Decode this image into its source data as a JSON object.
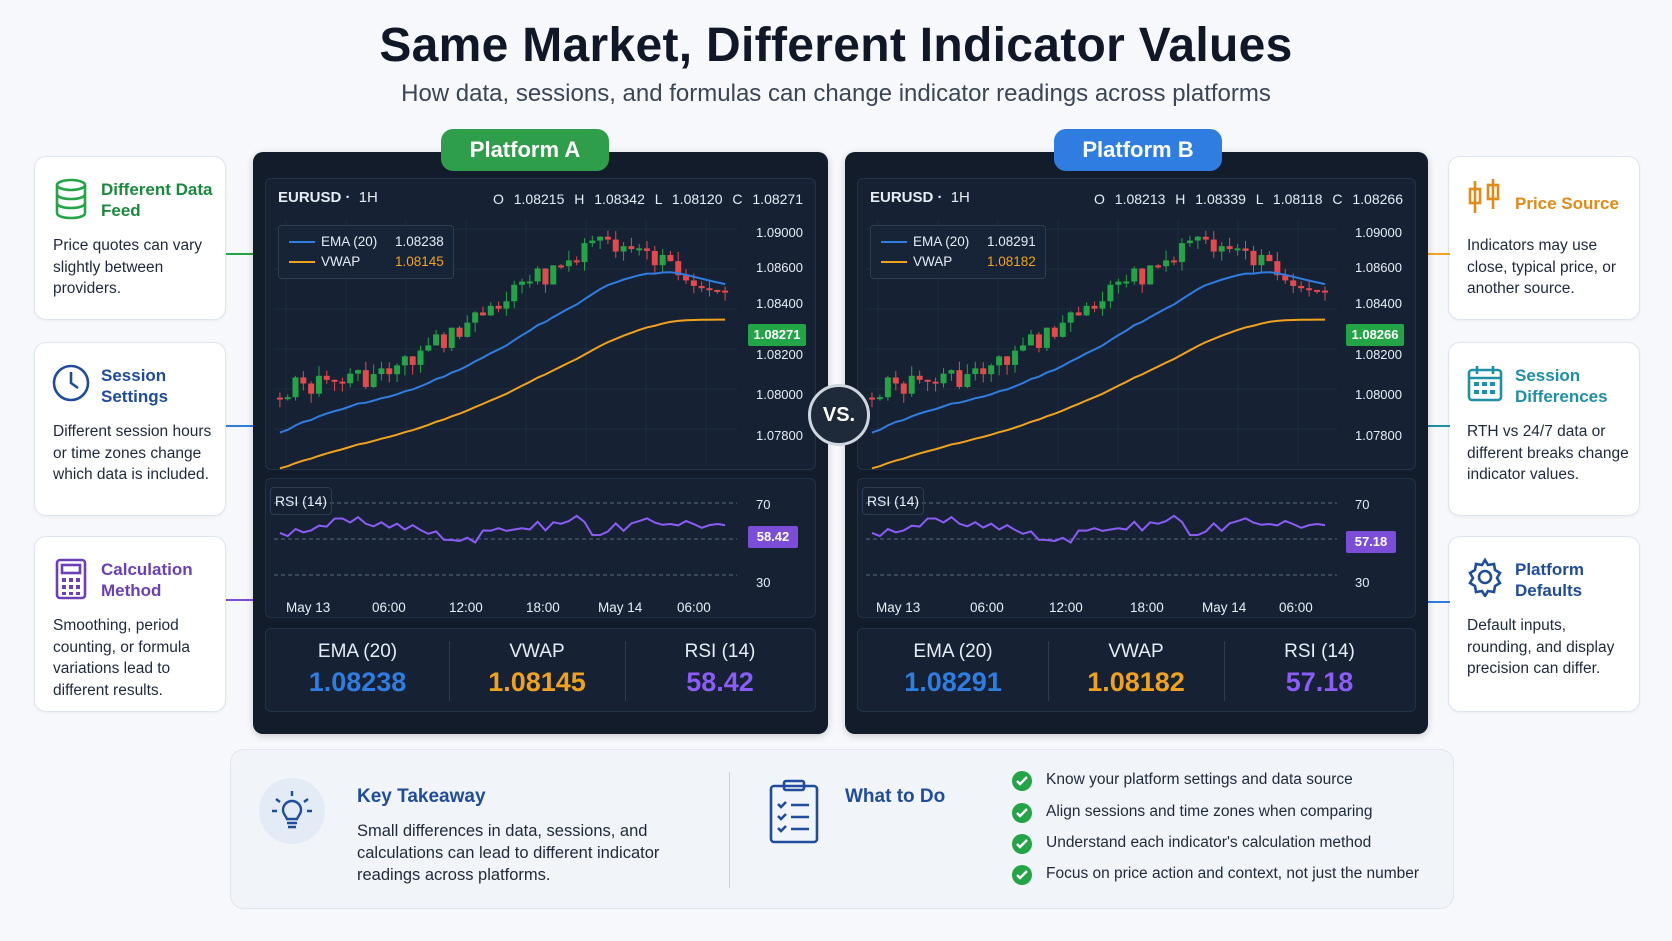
{
  "header": {
    "title": "Same Market, Different Indicator Values",
    "subtitle": "How data, sessions, and formulas can change indicator readings across platforms"
  },
  "colors": {
    "green": "#22a447",
    "blue": "#2f7de1",
    "purple": "#7c4dd6",
    "orange": "#f0a21c",
    "panel": "#121c2b"
  },
  "left_cards": [
    {
      "title": "Different Data Feed",
      "body": "Price quotes can vary slightly between providers.",
      "icon": "database-icon"
    },
    {
      "title": "Session Settings",
      "body": "Different session hours or time zones change which data is included.",
      "icon": "clock-icon"
    },
    {
      "title": "Calculation Method",
      "body": "Smoothing, period counting, or formula variations lead to different results.",
      "icon": "calculator-icon"
    }
  ],
  "right_cards": [
    {
      "title": "Price Source",
      "body": "Indicators may use close, typical price, or another source.",
      "icon": "candlestick-icon"
    },
    {
      "title": "Session Differences",
      "body": "RTH vs 24/7 data or different breaks change indicator values.",
      "icon": "calendar-icon"
    },
    {
      "title": "Platform Defaults",
      "body": "Default inputs, rounding, and display precision can differ.",
      "icon": "gear-icon"
    }
  ],
  "platforms": [
    {
      "name": "Platform A",
      "symbol": "EURUSD",
      "timeframe": "1H",
      "ohlc": "O 1.08215  H 1.08342  L 1.08120  C 1.08271",
      "legend_ema": "EMA (20)",
      "legend_ema_value": "1.08238",
      "legend_vwap": "VWAP",
      "legend_vwap_value": "1.08145",
      "price_tag": "1.08271",
      "y_ticks": [
        "1.09000",
        "1.08600",
        "1.08400",
        "1.08200",
        "1.08000",
        "1.07800"
      ],
      "rsi_label": "RSI (14)",
      "rsi_tag": "58.42",
      "rsi_upper": "70",
      "rsi_lower": "30",
      "x_ticks": [
        "May 13",
        "06:00",
        "12:00",
        "18:00",
        "May 14",
        "06:00"
      ],
      "stats": [
        {
          "label": "EMA (20)",
          "value": "1.08238"
        },
        {
          "label": "VWAP",
          "value": "1.08145"
        },
        {
          "label": "RSI (14)",
          "value": "58.42"
        }
      ]
    },
    {
      "name": "Platform B",
      "symbol": "EURUSD",
      "timeframe": "1H",
      "ohlc": "O 1.08213  H 1.08339  L 1.08118  C 1.08266",
      "legend_ema": "EMA (20)",
      "legend_ema_value": "1.08291",
      "legend_vwap": "VWAP",
      "legend_vwap_value": "1.08182",
      "price_tag": "1.08266",
      "y_ticks": [
        "1.09000",
        "1.08600",
        "1.08400",
        "1.08200",
        "1.08000",
        "1.07800"
      ],
      "rsi_label": "RSI (14)",
      "rsi_tag": "57.18",
      "rsi_upper": "70",
      "rsi_lower": "30",
      "x_ticks": [
        "May 13",
        "06:00",
        "12:00",
        "18:00",
        "May 14",
        "06:00"
      ],
      "stats": [
        {
          "label": "EMA (20)",
          "value": "1.08291"
        },
        {
          "label": "VWAP",
          "value": "1.08182"
        },
        {
          "label": "RSI (14)",
          "value": "57.18"
        }
      ]
    }
  ],
  "vs_label": "VS.",
  "takeaway": {
    "title": "Key Takeaway",
    "body": "Small differences in data, sessions, and calculations can lead to different indicator readings across platforms."
  },
  "what_to_do": {
    "title": "What to Do",
    "items": [
      "Know your platform settings and data source",
      "Align sessions and time zones when comparing",
      "Understand each indicator's calculation method",
      "Focus on price action and context, not just the number"
    ]
  }
}
